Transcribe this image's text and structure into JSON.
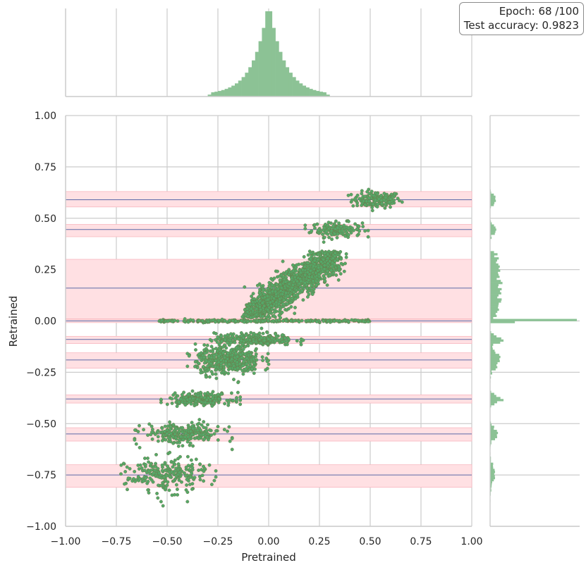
{
  "chart_data": {
    "type": "scatter",
    "subtype": "jointplot with marginal histograms",
    "xlabel": "Pretrained",
    "ylabel": "Retrained",
    "xlim": [
      -1.0,
      1.0
    ],
    "ylim": [
      -1.0,
      1.0
    ],
    "xticks": [
      "−1.00",
      "−0.75",
      "−0.50",
      "−0.25",
      "0.00",
      "0.25",
      "0.50",
      "0.75",
      "1.00"
    ],
    "yticks": [
      "1.00",
      "0.75",
      "0.50",
      "0.25",
      "0.00",
      "−0.25",
      "−0.50",
      "−0.75",
      "−1.00"
    ],
    "grid": true,
    "annotation": {
      "epoch": "Epoch: 68 /100",
      "accuracy": "Test accuracy: 0.9823"
    },
    "colors": {
      "points": "#55a868",
      "point_edge": "#6b7a4a",
      "hist": "#8cc295",
      "band": "#ffe0e3",
      "band_edge": "#f8b8c0",
      "center_line": "#5a6aa8",
      "grid": "#cccccc"
    },
    "quantization_levels": [
      {
        "center": 0.59,
        "band": [
          0.555,
          0.63
        ]
      },
      {
        "center": 0.445,
        "band": [
          0.41,
          0.47
        ]
      },
      {
        "center": 0.16,
        "band": [
          0.01,
          0.3
        ]
      },
      {
        "center": 0.0,
        "band": [
          -0.008,
          0.008
        ]
      },
      {
        "center": -0.09,
        "band": [
          -0.11,
          -0.075
        ]
      },
      {
        "center": -0.19,
        "band": [
          -0.23,
          -0.155
        ]
      },
      {
        "center": -0.38,
        "band": [
          -0.4,
          -0.36
        ]
      },
      {
        "center": -0.55,
        "band": [
          -0.585,
          -0.52
        ]
      },
      {
        "center": -0.75,
        "band": [
          -0.81,
          -0.7
        ]
      }
    ],
    "clusters": [
      {
        "x_range": [
          0.38,
          0.68
        ],
        "y": 0.59,
        "y_spread": 0.02
      },
      {
        "x_range": [
          0.18,
          0.49
        ],
        "y": 0.445,
        "y_spread": 0.018
      },
      {
        "x_range": [
          -0.12,
          0.38
        ],
        "y_range": [
          0.02,
          0.33
        ],
        "trend": "diagonal"
      },
      {
        "x_range": [
          -0.54,
          0.5
        ],
        "y": 0.0,
        "y_spread": 0.003
      },
      {
        "x_range": [
          -0.31,
          0.17
        ],
        "y": -0.09,
        "y_spread": 0.015
      },
      {
        "x_range": [
          -0.4,
          0.0
        ],
        "y": -0.19,
        "y_spread": 0.035
      },
      {
        "x_range": [
          -0.53,
          -0.14
        ],
        "y": -0.38,
        "y_spread": 0.015
      },
      {
        "x_range": [
          -0.66,
          -0.18
        ],
        "y": -0.55,
        "y_spread": 0.025
      },
      {
        "x_range": [
          -0.75,
          -0.26
        ],
        "y": -0.75,
        "y_spread": 0.04
      }
    ],
    "x_marginal": {
      "distribution": "peaked near 0, range -0.32 to 0.28"
    },
    "y_marginal": {
      "note": "peaks at the quantization levels"
    }
  }
}
